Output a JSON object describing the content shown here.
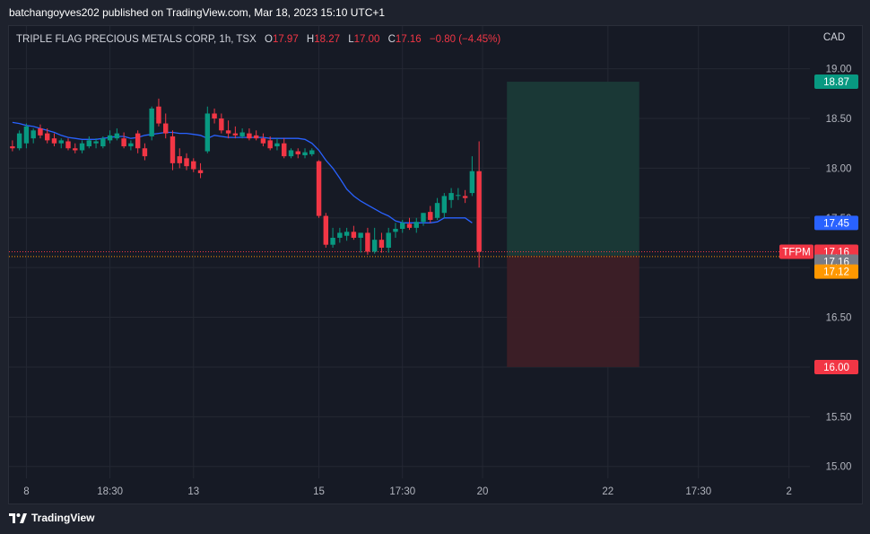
{
  "header": {
    "published": "batchangoyves202 published on TradingView.com, Mar 18, 2023 15:10 UTC+1"
  },
  "legend": {
    "symbol": "TRIPLE FLAG PRECIOUS METALS CORP, 1h, TSX",
    "o_label": "O",
    "o_value": "17.97",
    "h_label": "H",
    "h_value": "18.27",
    "l_label": "L",
    "l_value": "17.00",
    "c_label": "C",
    "c_value": "17.16",
    "change": "−0.80 (−4.45%)"
  },
  "currency": "CAD",
  "footer": {
    "brand": "TradingView"
  },
  "colors": {
    "up": "#089981",
    "down": "#f23645",
    "ma": "#2962ff",
    "profit_zone": "#1a3a37",
    "loss_zone": "#3d1f26",
    "orange": "#ff9800",
    "grey": "#787b86"
  },
  "price_tags": [
    {
      "text": "18.87",
      "price": 18.87,
      "color": "#089981"
    },
    {
      "text": "17.45",
      "price": 17.45,
      "color": "#2962ff"
    },
    {
      "text": "17.16",
      "price": 17.16,
      "color": "#f23645",
      "ticker": "TFPM"
    },
    {
      "text": "17.16",
      "price": 17.06,
      "color": "#787b86"
    },
    {
      "text": "17.12",
      "price": 16.96,
      "color": "#ff9800"
    },
    {
      "text": "16.00",
      "price": 16.0,
      "color": "#f23645"
    }
  ],
  "chart_data": {
    "type": "candlestick",
    "title": "TRIPLE FLAG PRECIOUS METALS CORP, 1h, TSX",
    "y_ticks": [
      19.0,
      18.5,
      18.0,
      17.5,
      17.0,
      16.5,
      16.0,
      15.5,
      15.0
    ],
    "y_tick_labels": [
      "19.00",
      "18.50",
      "18.00",
      "17.50",
      "17.00",
      "16.50",
      "16.00",
      "15.50",
      "15.00"
    ],
    "ylim": [
      14.88,
      19.43
    ],
    "x_ticks": [
      {
        "label": "8",
        "index": 2
      },
      {
        "label": "18:30",
        "index": 14
      },
      {
        "label": "13",
        "index": 26
      },
      {
        "label": "15",
        "index": 44
      },
      {
        "label": "17:30",
        "index": 56
      },
      {
        "label": "20",
        "index": 67.5
      },
      {
        "label": "22",
        "index": 85.5
      },
      {
        "label": "17:30",
        "index": 98.5
      },
      {
        "label": "2",
        "index": 111.5
      }
    ],
    "x_slot_count": 115,
    "candles": [
      {
        "o": 18.22,
        "h": 18.28,
        "l": 18.17,
        "c": 18.2
      },
      {
        "o": 18.2,
        "h": 18.38,
        "l": 18.18,
        "c": 18.35
      },
      {
        "o": 18.25,
        "h": 18.45,
        "l": 18.2,
        "c": 18.42
      },
      {
        "o": 18.3,
        "h": 18.4,
        "l": 18.25,
        "c": 18.38
      },
      {
        "o": 18.4,
        "h": 18.44,
        "l": 18.3,
        "c": 18.33
      },
      {
        "o": 18.35,
        "h": 18.4,
        "l": 18.25,
        "c": 18.28
      },
      {
        "o": 18.3,
        "h": 18.35,
        "l": 18.22,
        "c": 18.25
      },
      {
        "o": 18.25,
        "h": 18.3,
        "l": 18.2,
        "c": 18.28
      },
      {
        "o": 18.27,
        "h": 18.3,
        "l": 18.18,
        "c": 18.2
      },
      {
        "o": 18.2,
        "h": 18.25,
        "l": 18.15,
        "c": 18.18
      },
      {
        "o": 18.18,
        "h": 18.28,
        "l": 18.15,
        "c": 18.25
      },
      {
        "o": 18.22,
        "h": 18.32,
        "l": 18.2,
        "c": 18.28
      },
      {
        "o": 18.25,
        "h": 18.3,
        "l": 18.2,
        "c": 18.27
      },
      {
        "o": 18.22,
        "h": 18.32,
        "l": 18.2,
        "c": 18.3
      },
      {
        "o": 18.28,
        "h": 18.38,
        "l": 18.25,
        "c": 18.33
      },
      {
        "o": 18.3,
        "h": 18.4,
        "l": 18.28,
        "c": 18.35
      },
      {
        "o": 18.3,
        "h": 18.36,
        "l": 18.2,
        "c": 18.22
      },
      {
        "o": 18.22,
        "h": 18.28,
        "l": 18.18,
        "c": 18.25
      },
      {
        "o": 18.35,
        "h": 18.38,
        "l": 18.15,
        "c": 18.2
      },
      {
        "o": 18.2,
        "h": 18.25,
        "l": 18.08,
        "c": 18.12
      },
      {
        "o": 18.32,
        "h": 18.62,
        "l": 18.28,
        "c": 18.6
      },
      {
        "o": 18.62,
        "h": 18.7,
        "l": 18.42,
        "c": 18.45
      },
      {
        "o": 18.45,
        "h": 18.55,
        "l": 18.3,
        "c": 18.35
      },
      {
        "o": 18.32,
        "h": 18.38,
        "l": 17.98,
        "c": 18.05
      },
      {
        "o": 18.12,
        "h": 18.2,
        "l": 18.0,
        "c": 18.05
      },
      {
        "o": 18.1,
        "h": 18.15,
        "l": 17.98,
        "c": 18.02
      },
      {
        "o": 18.07,
        "h": 18.1,
        "l": 17.96,
        "c": 17.99
      },
      {
        "o": 17.98,
        "h": 18.05,
        "l": 17.9,
        "c": 17.95
      },
      {
        "o": 18.17,
        "h": 18.62,
        "l": 18.15,
        "c": 18.55
      },
      {
        "o": 18.55,
        "h": 18.6,
        "l": 18.45,
        "c": 18.5
      },
      {
        "o": 18.5,
        "h": 18.55,
        "l": 18.35,
        "c": 18.38
      },
      {
        "o": 18.38,
        "h": 18.48,
        "l": 18.3,
        "c": 18.35
      },
      {
        "o": 18.35,
        "h": 18.42,
        "l": 18.3,
        "c": 18.33
      },
      {
        "o": 18.32,
        "h": 18.4,
        "l": 18.3,
        "c": 18.36
      },
      {
        "o": 18.35,
        "h": 18.4,
        "l": 18.28,
        "c": 18.3
      },
      {
        "o": 18.33,
        "h": 18.38,
        "l": 18.28,
        "c": 18.3
      },
      {
        "o": 18.3,
        "h": 18.35,
        "l": 18.22,
        "c": 18.25
      },
      {
        "o": 18.28,
        "h": 18.32,
        "l": 18.18,
        "c": 18.2
      },
      {
        "o": 18.22,
        "h": 18.3,
        "l": 18.18,
        "c": 18.25
      },
      {
        "o": 18.25,
        "h": 18.3,
        "l": 18.1,
        "c": 18.12
      },
      {
        "o": 18.12,
        "h": 18.2,
        "l": 18.1,
        "c": 18.18
      },
      {
        "o": 18.17,
        "h": 18.2,
        "l": 18.1,
        "c": 18.14
      },
      {
        "o": 18.13,
        "h": 18.2,
        "l": 18.1,
        "c": 18.16
      },
      {
        "o": 18.14,
        "h": 18.2,
        "l": 18.12,
        "c": 18.18
      },
      {
        "o": 18.07,
        "h": 18.08,
        "l": 17.5,
        "c": 17.52
      },
      {
        "o": 17.52,
        "h": 17.55,
        "l": 17.2,
        "c": 17.23
      },
      {
        "o": 17.23,
        "h": 17.4,
        "l": 17.2,
        "c": 17.3
      },
      {
        "o": 17.3,
        "h": 17.4,
        "l": 17.25,
        "c": 17.35
      },
      {
        "o": 17.32,
        "h": 17.4,
        "l": 17.27,
        "c": 17.36
      },
      {
        "o": 17.36,
        "h": 17.42,
        "l": 17.28,
        "c": 17.3
      },
      {
        "o": 17.3,
        "h": 17.35,
        "l": 17.15,
        "c": 17.35
      },
      {
        "o": 17.35,
        "h": 17.4,
        "l": 17.13,
        "c": 17.16
      },
      {
        "o": 17.16,
        "h": 17.4,
        "l": 17.14,
        "c": 17.28
      },
      {
        "o": 17.28,
        "h": 17.35,
        "l": 17.15,
        "c": 17.2
      },
      {
        "o": 17.2,
        "h": 17.4,
        "l": 17.15,
        "c": 17.35
      },
      {
        "o": 17.36,
        "h": 17.45,
        "l": 17.3,
        "c": 17.39
      },
      {
        "o": 17.39,
        "h": 17.48,
        "l": 17.35,
        "c": 17.45
      },
      {
        "o": 17.44,
        "h": 17.5,
        "l": 17.38,
        "c": 17.4
      },
      {
        "o": 17.4,
        "h": 17.5,
        "l": 17.35,
        "c": 17.46
      },
      {
        "o": 17.46,
        "h": 17.55,
        "l": 17.42,
        "c": 17.55
      },
      {
        "o": 17.56,
        "h": 17.62,
        "l": 17.45,
        "c": 17.48
      },
      {
        "o": 17.5,
        "h": 17.7,
        "l": 17.48,
        "c": 17.65
      },
      {
        "o": 17.55,
        "h": 17.75,
        "l": 17.5,
        "c": 17.72
      },
      {
        "o": 17.68,
        "h": 17.8,
        "l": 17.6,
        "c": 17.75
      },
      {
        "o": 17.73,
        "h": 17.8,
        "l": 17.68,
        "c": 17.73
      },
      {
        "o": 17.72,
        "h": 17.78,
        "l": 17.65,
        "c": 17.7
      },
      {
        "o": 17.75,
        "h": 18.12,
        "l": 17.72,
        "c": 17.97
      },
      {
        "o": 17.97,
        "h": 18.27,
        "l": 17.0,
        "c": 17.16
      }
    ],
    "ma_line": [
      18.46,
      18.45,
      18.43,
      18.42,
      18.4,
      18.38,
      18.36,
      18.33,
      18.31,
      18.3,
      18.29,
      18.29,
      18.29,
      18.3,
      18.31,
      18.32,
      18.32,
      18.3,
      18.31,
      18.33,
      18.34,
      18.35,
      18.36,
      18.36,
      18.35,
      18.35,
      18.34,
      18.33,
      18.3,
      18.33,
      18.32,
      18.31,
      18.31,
      18.31,
      18.31,
      18.31,
      18.31,
      18.3,
      18.3,
      18.3,
      18.3,
      18.3,
      18.29,
      18.25,
      18.18,
      18.08,
      18.0,
      17.9,
      17.79,
      17.72,
      17.67,
      17.63,
      17.59,
      17.55,
      17.52,
      17.47,
      17.45,
      17.45,
      17.45,
      17.45,
      17.45,
      17.46,
      17.5,
      17.5,
      17.5,
      17.5,
      17.45
    ],
    "long_position": {
      "x_start_index": 71,
      "x_end_index": 90,
      "entry": 17.12,
      "target": 18.87,
      "stop": 16.0
    },
    "current_price_line": 17.16
  }
}
